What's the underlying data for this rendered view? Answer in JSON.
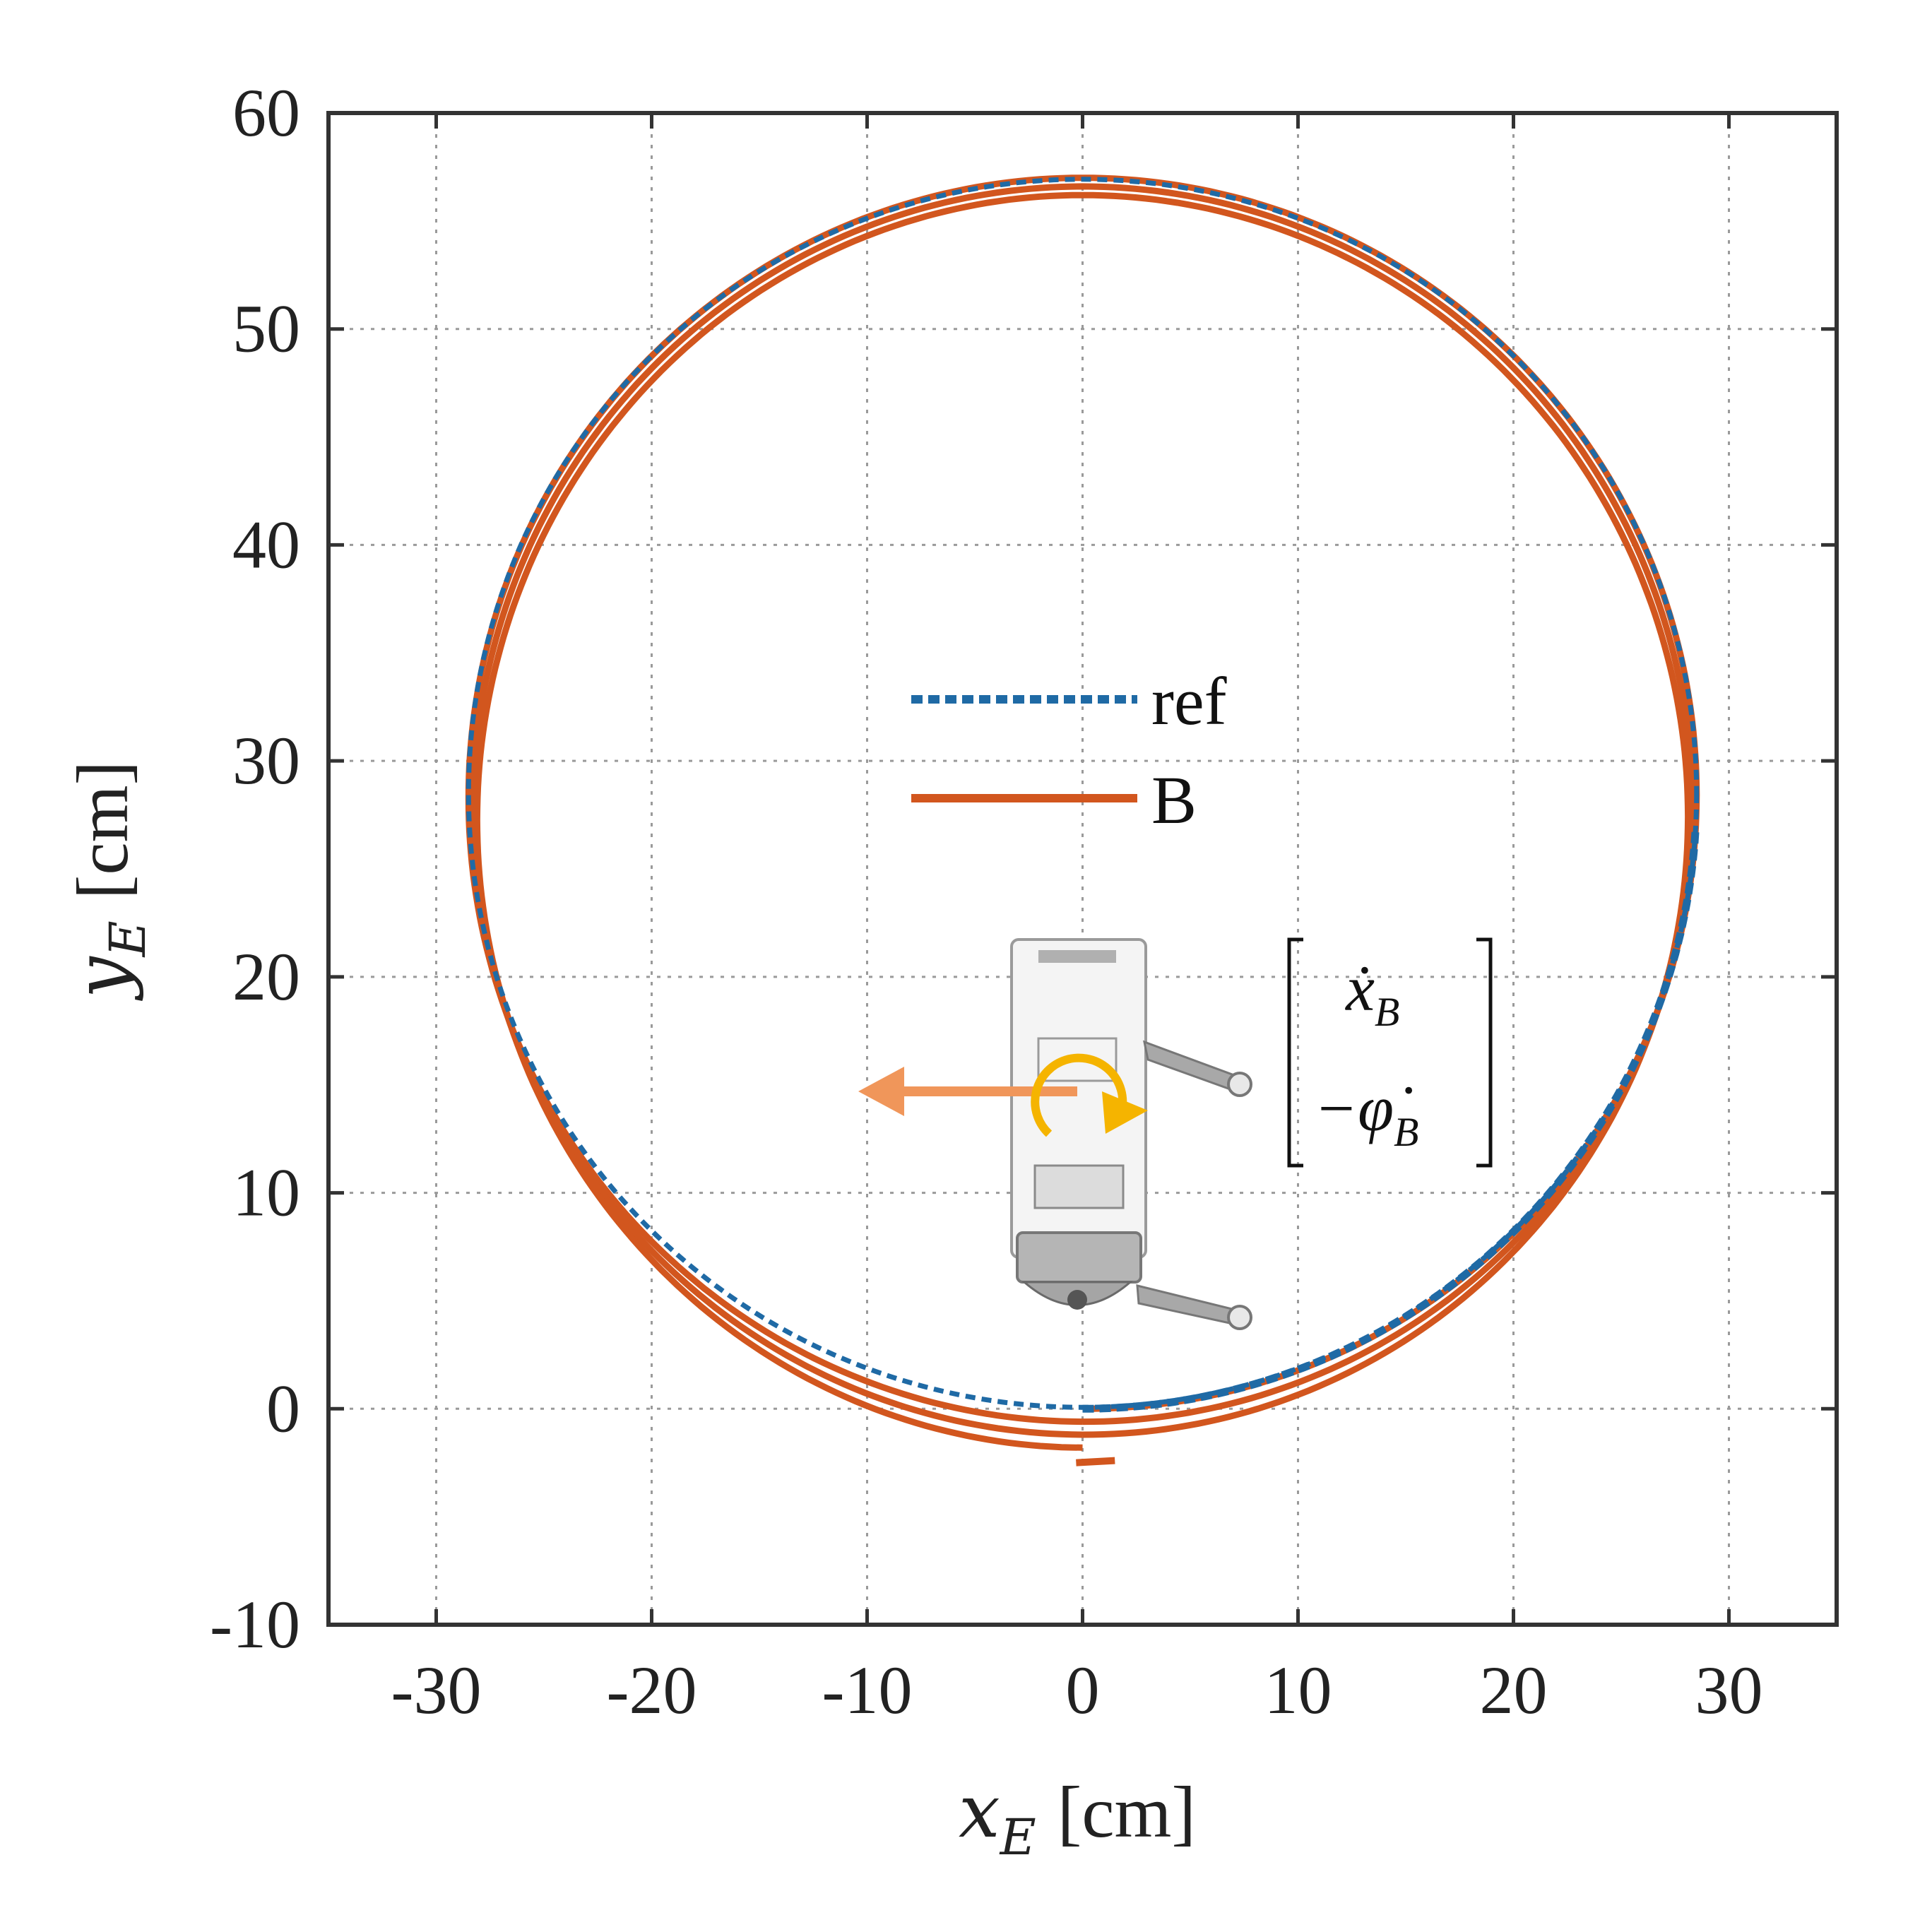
{
  "chart_data": {
    "type": "line",
    "title": "",
    "xlabel": {
      "var": "x",
      "sub": "E",
      "unit": "[cm]"
    },
    "ylabel": {
      "var": "y",
      "sub": "E",
      "unit": "[cm]"
    },
    "xlim": [
      -35,
      35
    ],
    "ylim": [
      -10,
      60
    ],
    "xticks": [
      -30,
      -20,
      -10,
      0,
      10,
      20,
      30
    ],
    "yticks": [
      -10,
      0,
      10,
      20,
      30,
      40,
      50,
      60
    ],
    "xtick_labels": [
      "-30",
      "-20",
      "-10",
      "0",
      "10",
      "20",
      "30"
    ],
    "ytick_labels": [
      "-10",
      "0",
      "10",
      "20",
      "30",
      "40",
      "50",
      "60"
    ],
    "grid": true,
    "grid_style": "dotted",
    "legend": {
      "placement": "center"
    },
    "series": [
      {
        "name": "ref",
        "style": "dashed",
        "color": "#1f6aa5",
        "shape": "circle",
        "center": [
          0,
          28.5
        ],
        "radius": 28.5,
        "turns": 3,
        "start": [
          0,
          0
        ]
      },
      {
        "name": "B",
        "style": "solid",
        "color": "#d2561e",
        "shape": "spiral",
        "loops": [
          {
            "center": [
              0,
              28.5
            ],
            "radius": 28.5,
            "y_offset_end": -0.6
          },
          {
            "center": [
              0,
              28.3
            ],
            "radius": 28.3,
            "y_offset_end": -1.2
          },
          {
            "center": [
              0,
              28.1
            ],
            "radius": 28.1,
            "y_offset_end": -1.8
          }
        ],
        "start": [
          0,
          0
        ],
        "end": [
          0,
          -2.5
        ]
      }
    ],
    "annotation": {
      "vector": [
        {
          "var": "ẋ",
          "sub": "B"
        },
        {
          "var": "−φ̇",
          "sub": "B"
        }
      ],
      "arrow_color": "#f0965a",
      "rotation_color": "#f5b400"
    }
  }
}
